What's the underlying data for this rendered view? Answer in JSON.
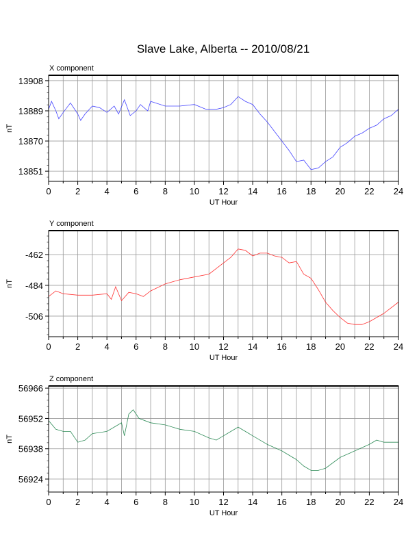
{
  "title": "Slave Lake, Alberta -- 2010/08/21",
  "chart_data": [
    {
      "type": "line",
      "title": "X component",
      "xlabel": "UT Hour",
      "ylabel": "nT",
      "color": "#4444ff",
      "xlim": [
        0,
        24
      ],
      "ylim": [
        13844.6,
        13911.4
      ],
      "xticks": [
        0,
        2,
        4,
        6,
        8,
        10,
        12,
        14,
        16,
        18,
        20,
        22,
        24
      ],
      "yticks": [
        13851,
        13870,
        13889,
        13908
      ],
      "grid": true,
      "x": [
        0,
        0.2,
        0.5,
        0.7,
        1,
        1.5,
        2,
        2.2,
        2.5,
        3,
        3.5,
        4,
        4.5,
        4.8,
        5.2,
        5.6,
        6,
        6.3,
        6.8,
        7,
        8,
        9,
        10,
        10.8,
        11.5,
        12,
        12.5,
        13,
        13.5,
        14,
        14.5,
        15,
        15.5,
        16,
        16.5,
        17,
        17.5,
        18,
        18.5,
        19,
        19.5,
        20,
        20.5,
        21,
        21.5,
        22,
        22.5,
        23,
        23.5,
        24
      ],
      "y": [
        13890,
        13895,
        13889,
        13884,
        13888,
        13894,
        13887,
        13883,
        13887,
        13892,
        13891,
        13888,
        13892,
        13887,
        13896,
        13886,
        13889,
        13893,
        13889,
        13895,
        13892,
        13892,
        13893,
        13890,
        13890,
        13891,
        13893,
        13898,
        13895,
        13893,
        13887,
        13882,
        13876,
        13870,
        13864,
        13857,
        13858,
        13852,
        13853,
        13857,
        13860,
        13866,
        13869,
        13873,
        13875,
        13878,
        13880,
        13884,
        13886,
        13890
      ]
    },
    {
      "type": "line",
      "title": "Y component",
      "xlabel": "UT Hour",
      "ylabel": "nT",
      "color": "#ff3333",
      "xlim": [
        0,
        24
      ],
      "ylim": [
        -520.7,
        -444.9
      ],
      "xticks": [
        0,
        2,
        4,
        6,
        8,
        10,
        12,
        14,
        16,
        18,
        20,
        22,
        24
      ],
      "yticks": [
        -506,
        -484,
        -462
      ],
      "grid": true,
      "x": [
        0,
        0.5,
        1,
        2,
        3,
        4,
        4.3,
        4.6,
        5,
        5.5,
        6,
        6.5,
        7,
        8,
        9,
        10,
        11,
        12,
        12.5,
        13,
        13.5,
        14,
        14.5,
        15,
        15.5,
        16,
        16.5,
        17,
        17.5,
        18,
        18.5,
        19,
        19.5,
        20,
        20.5,
        21,
        21.5,
        22,
        23,
        24
      ],
      "y": [
        -492,
        -488,
        -490,
        -491,
        -491,
        -490,
        -494,
        -485,
        -495,
        -489,
        -490,
        -492,
        -488,
        -483,
        -480,
        -478,
        -476,
        -468,
        -464,
        -458,
        -459,
        -463,
        -461,
        -461,
        -463,
        -464,
        -468,
        -467,
        -476,
        -479,
        -487,
        -496,
        -502,
        -507,
        -511,
        -512,
        -512,
        -510,
        -504,
        -496
      ]
    },
    {
      "type": "line",
      "title": "Z component",
      "xlabel": "UT Hour",
      "ylabel": "nT",
      "color": "#2e8b57",
      "xlim": [
        0,
        24
      ],
      "ylim": [
        56918,
        56967
      ],
      "xticks": [
        0,
        2,
        4,
        6,
        8,
        10,
        12,
        14,
        16,
        18,
        20,
        22,
        24
      ],
      "yticks": [
        56924,
        56938,
        56952,
        56966
      ],
      "grid": true,
      "x": [
        0,
        0.5,
        1,
        1.5,
        2,
        2.5,
        3,
        4,
        4.5,
        5,
        5.2,
        5.5,
        5.8,
        6.2,
        7,
        8,
        9,
        10,
        11,
        11.5,
        12,
        13,
        13.5,
        14,
        15,
        16,
        17,
        17.5,
        18,
        18.5,
        19,
        20,
        21,
        22,
        22.5,
        23,
        24
      ],
      "y": [
        56951,
        56947,
        56946,
        56946,
        56941,
        56942,
        56945,
        56946,
        56948,
        56950,
        56944,
        56954,
        56956,
        56952,
        56950,
        56949,
        56947,
        56946,
        56943,
        56942,
        56944,
        56948,
        56946,
        56944,
        56940,
        56937,
        56933,
        56930,
        56928,
        56928,
        56929,
        56934,
        56937,
        56940,
        56942,
        56941,
        56941
      ]
    }
  ]
}
